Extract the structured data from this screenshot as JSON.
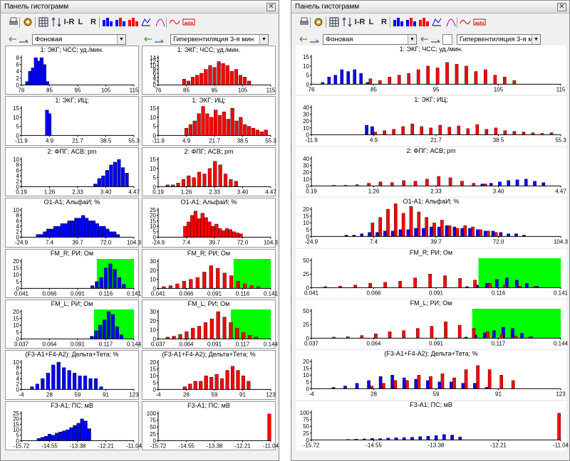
{
  "window_title": "Панель гистограмм",
  "close_symbol": "✕",
  "left_combo_value": "Фоновая",
  "right_combo_value": "Гипервентиляция 3-я мин",
  "colors": {
    "baseline": "#0000ff",
    "test": "#ff0000",
    "zone": "#00ff00"
  },
  "icons": [
    "printer-icon",
    "settings-icon",
    "grid-icon",
    "scale-icon",
    "lr-icon",
    "l-icon",
    "r-icon",
    "overlay-blue-icon",
    "overlay-mixed-icon",
    "overlay-red-icon",
    "histogram-icon",
    "curve-icon",
    "wave-icon",
    "auto-icon"
  ],
  "toolbar": {
    "lr": "I-R",
    "l": "L",
    "r": "R",
    "auto": "auto"
  },
  "panels": [
    {
      "title": "1: ЭКГ; ЧСС; уд./мин.",
      "yticks": [
        "0",
        "2",
        "4",
        "6",
        "8"
      ],
      "yticks_r": [
        "0",
        "2",
        "4",
        "6",
        "8",
        "10",
        "12",
        "14"
      ],
      "yticks_c": [
        "0",
        "5",
        "10",
        "15"
      ],
      "xticks": [
        "76",
        "85",
        "95",
        "105",
        "115"
      ],
      "zone": null
    },
    {
      "title": "1: ЭКГ; ИЦ;",
      "yticks": [
        "0",
        "5",
        "10",
        "15"
      ],
      "yticks_r": [
        "0",
        "5",
        "10",
        "15"
      ],
      "yticks_c": [
        "0",
        "10",
        "20",
        "30",
        "40"
      ],
      "xticks": [
        "-11.9",
        "4.9",
        "21.7",
        "38.5",
        "55.3"
      ],
      "zone": null
    },
    {
      "title": "2: ФПГ; АСВ; pm",
      "yticks": [
        "0",
        "2",
        "4",
        "6",
        "8",
        "10"
      ],
      "yticks_r": [
        "0",
        "5",
        "10",
        "15"
      ],
      "yticks_c": [
        "0",
        "10",
        "20",
        "30",
        "40"
      ],
      "xticks": [
        "0.19",
        "1.26",
        "2.33",
        "3.40",
        "4.47"
      ],
      "zone": null
    },
    {
      "title": "O1-A1; АльфаИ; %",
      "yticks": [
        "0",
        "2",
        "4",
        "6",
        "8",
        "10"
      ],
      "yticks_r": [
        "0",
        "5",
        "10",
        "15",
        "20",
        "25"
      ],
      "yticks_c": [
        "0",
        "5",
        "10",
        "15",
        "20"
      ],
      "xticks": [
        "-24.9",
        "7.4",
        "39.7",
        "72.0",
        "104.3"
      ],
      "zone": null
    },
    {
      "title": "FM_R; РИ; Ом",
      "yticks": [
        "0",
        "5",
        "10",
        "15",
        "20"
      ],
      "yticks_r": [
        "0",
        "10",
        "20",
        "30"
      ],
      "yticks_c": [
        "0",
        "25",
        "50"
      ],
      "xticks": [
        "0.041",
        "0.066",
        "0.091",
        "0.116",
        "0.141"
      ],
      "zone": [
        0.108,
        0.141
      ]
    },
    {
      "title": "FM_L; РИ; Ом",
      "yticks": [
        "0",
        "5",
        "10",
        "15",
        "20"
      ],
      "yticks_r": [
        "0",
        "10",
        "20",
        "30"
      ],
      "yticks_c": [
        "0",
        "25",
        "50"
      ],
      "xticks": [
        "0.037",
        "0.064",
        "0.091",
        "0.117",
        "0.144"
      ],
      "zone": [
        0.106,
        0.144
      ]
    },
    {
      "title": "(F3-A1+F4-A2); Дельта+Тета; %",
      "yticks": [
        "0",
        "2",
        "4",
        "6",
        "8",
        "10"
      ],
      "yticks_r": [
        "0",
        "5",
        "10",
        "15",
        "20"
      ],
      "yticks_c": [
        "0",
        "5",
        "10",
        "15",
        "20"
      ],
      "xticks": [
        "-4",
        "28",
        "59",
        "91",
        "123"
      ],
      "zone": null
    },
    {
      "title": "F3-A1; ПС; мВ",
      "yticks": [
        "0",
        "5",
        "10",
        "15",
        "20",
        "25"
      ],
      "yticks_r": [
        "0",
        "25",
        "50",
        "75",
        "100"
      ],
      "yticks_c": [
        "0",
        "25",
        "50",
        "75",
        "100"
      ],
      "xticks": [
        "-15.72",
        "-14.55",
        "-13.38",
        "-12.21",
        "-11.04"
      ],
      "zone": null
    }
  ],
  "chart_data": [
    {
      "type": "bar",
      "title": "1: ЭКГ; ЧСС; уд./мин.",
      "xlim": [
        76,
        115
      ],
      "series": [
        {
          "name": "Фоновая",
          "x": [
            78,
            79,
            80,
            81,
            82,
            83,
            84,
            85
          ],
          "values": [
            1,
            4,
            5,
            8,
            7,
            8,
            6,
            1
          ]
        },
        {
          "name": "Гипервентиляция 3-я мин",
          "x": [
            85,
            86.5,
            88,
            89.5,
            91,
            92.5,
            94,
            95.5,
            97,
            98.5,
            100,
            101.5,
            103,
            104.5,
            106,
            107.5
          ],
          "values": [
            3,
            2,
            4,
            5,
            6,
            8,
            10,
            9,
            12,
            11,
            10,
            7,
            8,
            5,
            4,
            2
          ]
        }
      ]
    },
    {
      "type": "bar",
      "title": "1: ЭКГ; ИЦ;",
      "xlim": [
        -11.9,
        55.3
      ],
      "series": [
        {
          "name": "Фоновая",
          "x": [
            3.4,
            4.9
          ],
          "values": [
            14,
            12
          ]
        },
        {
          "name": "Гипервентиляция 3-я мин",
          "x": [
            4.9,
            7.4,
            9.9,
            12.4,
            14.9,
            17.4,
            19.9,
            22.4,
            24.9,
            27.4,
            29.9,
            32.4,
            34.9,
            37.4,
            39.9,
            42.4,
            44.9,
            47.4,
            49.9,
            52.4
          ],
          "values": [
            4,
            6,
            8,
            12,
            16,
            12,
            10,
            14,
            11,
            13,
            9,
            15,
            8,
            10,
            6,
            5,
            4,
            3,
            2,
            3
          ]
        }
      ]
    },
    {
      "type": "bar",
      "title": "2: ФПГ; АСВ; pm",
      "xlim": [
        0.19,
        4.47
      ],
      "series": [
        {
          "name": "Фоновая",
          "x": [
            3.0,
            3.15,
            3.3,
            3.45,
            3.6,
            3.75,
            3.9,
            4.05,
            4.2
          ],
          "values": [
            1,
            3,
            4,
            6,
            8,
            9,
            10,
            7,
            5
          ]
        },
        {
          "name": "Гипервентиляция 3-я мин",
          "x": [
            0.55,
            0.75,
            0.95,
            1.15,
            1.35,
            1.55,
            1.75,
            1.95,
            2.15,
            2.35,
            2.55,
            2.75,
            2.95,
            3.15
          ],
          "values": [
            1,
            1,
            2,
            4,
            6,
            5,
            8,
            7,
            10,
            14,
            12,
            7,
            4,
            3
          ]
        }
      ]
    },
    {
      "type": "bar",
      "title": "O1-A1; АльфаИ; %",
      "xlim": [
        -24.9,
        104.3
      ],
      "series": [
        {
          "name": "Фоновая",
          "x": [
            -6,
            -2,
            2,
            6,
            10,
            14,
            18,
            22,
            26,
            30,
            34,
            38,
            42,
            46,
            50,
            54,
            58,
            62,
            66,
            70,
            74,
            78,
            82,
            86
          ],
          "values": [
            1,
            1,
            2,
            3,
            3,
            4,
            4,
            5,
            5,
            6,
            6,
            7,
            7,
            8,
            7,
            6,
            6,
            5,
            4,
            4,
            3,
            2,
            2,
            1
          ]
        },
        {
          "name": "Гипервентиляция 3-я мин",
          "x": [
            6,
            10,
            14,
            18,
            22,
            26,
            30,
            34,
            38,
            42,
            46,
            50,
            54,
            58,
            62,
            66,
            70
          ],
          "values": [
            10,
            14,
            20,
            24,
            17,
            22,
            18,
            14,
            10,
            12,
            8,
            6,
            8,
            7,
            5,
            4,
            3
          ]
        }
      ]
    },
    {
      "type": "bar",
      "title": "FM_R; РИ; Ом",
      "xlim": [
        0.041,
        0.141
      ],
      "zone": [
        0.108,
        0.141
      ],
      "series": [
        {
          "name": "Фоновая",
          "x": [
            0.104,
            0.108,
            0.112,
            0.116,
            0.12,
            0.124,
            0.128,
            0.132
          ],
          "values": [
            2,
            5,
            8,
            15,
            18,
            14,
            8,
            3
          ]
        },
        {
          "name": "Гипервентиляция 3-я мин",
          "x": [
            0.046,
            0.052,
            0.058,
            0.064,
            0.07,
            0.076,
            0.082,
            0.088,
            0.094,
            0.1,
            0.106,
            0.112,
            0.118,
            0.124,
            0.13
          ],
          "values": [
            2,
            3,
            5,
            8,
            10,
            12,
            18,
            25,
            22,
            17,
            14,
            8,
            5,
            3,
            2
          ]
        }
      ]
    },
    {
      "type": "bar",
      "title": "FM_L; РИ; Ом",
      "xlim": [
        0.037,
        0.144
      ],
      "zone": [
        0.106,
        0.144
      ],
      "series": [
        {
          "name": "Фоновая",
          "x": [
            0.104,
            0.108,
            0.112,
            0.116,
            0.12,
            0.124,
            0.128,
            0.132
          ],
          "values": [
            2,
            6,
            10,
            14,
            20,
            18,
            9,
            3
          ]
        },
        {
          "name": "Гипервентиляция 3-я мин",
          "x": [
            0.046,
            0.052,
            0.058,
            0.064,
            0.07,
            0.076,
            0.082,
            0.088,
            0.094,
            0.1,
            0.106,
            0.112,
            0.118,
            0.124,
            0.13
          ],
          "values": [
            2,
            3,
            5,
            8,
            12,
            14,
            18,
            22,
            30,
            24,
            18,
            12,
            7,
            4,
            2
          ]
        }
      ]
    },
    {
      "type": "bar",
      "title": "(F3-A1+F4-A2); Дельта+Тета; %",
      "xlim": [
        -4,
        123
      ],
      "series": [
        {
          "name": "Фоновая",
          "x": [
            8,
            14,
            20,
            26,
            32,
            38,
            44,
            50,
            56,
            62,
            68,
            74,
            80,
            86
          ],
          "values": [
            1,
            2,
            4,
            6,
            9,
            10,
            8,
            7,
            6,
            5,
            5,
            4,
            4,
            1
          ]
        },
        {
          "name": "Гипервентиляция 3-я мин",
          "x": [
            26,
            32,
            38,
            44,
            50,
            56,
            62,
            68,
            74,
            80,
            86,
            92,
            98
          ],
          "values": [
            2,
            4,
            6,
            6,
            10,
            9,
            11,
            8,
            14,
            17,
            14,
            10,
            6
          ]
        }
      ]
    },
    {
      "type": "bar",
      "title": "F3-A1; ПС; мВ",
      "xlim": [
        -15.72,
        -11.04
      ],
      "series": [
        {
          "name": "Фоновая",
          "x": [
            -15.0,
            -14.85,
            -14.7,
            -14.55,
            -14.4,
            -14.25,
            -14.1,
            -13.95,
            -13.8,
            -13.65,
            -13.5,
            -13.35,
            -13.2,
            -13.05,
            -12.9
          ],
          "values": [
            2,
            3,
            4,
            6,
            5,
            7,
            8,
            9,
            10,
            12,
            14,
            16,
            20,
            18,
            11
          ]
        },
        {
          "name": "Гипервентиляция 3-я мин",
          "x": [
            -11.1
          ],
          "values": [
            98
          ]
        }
      ]
    }
  ]
}
